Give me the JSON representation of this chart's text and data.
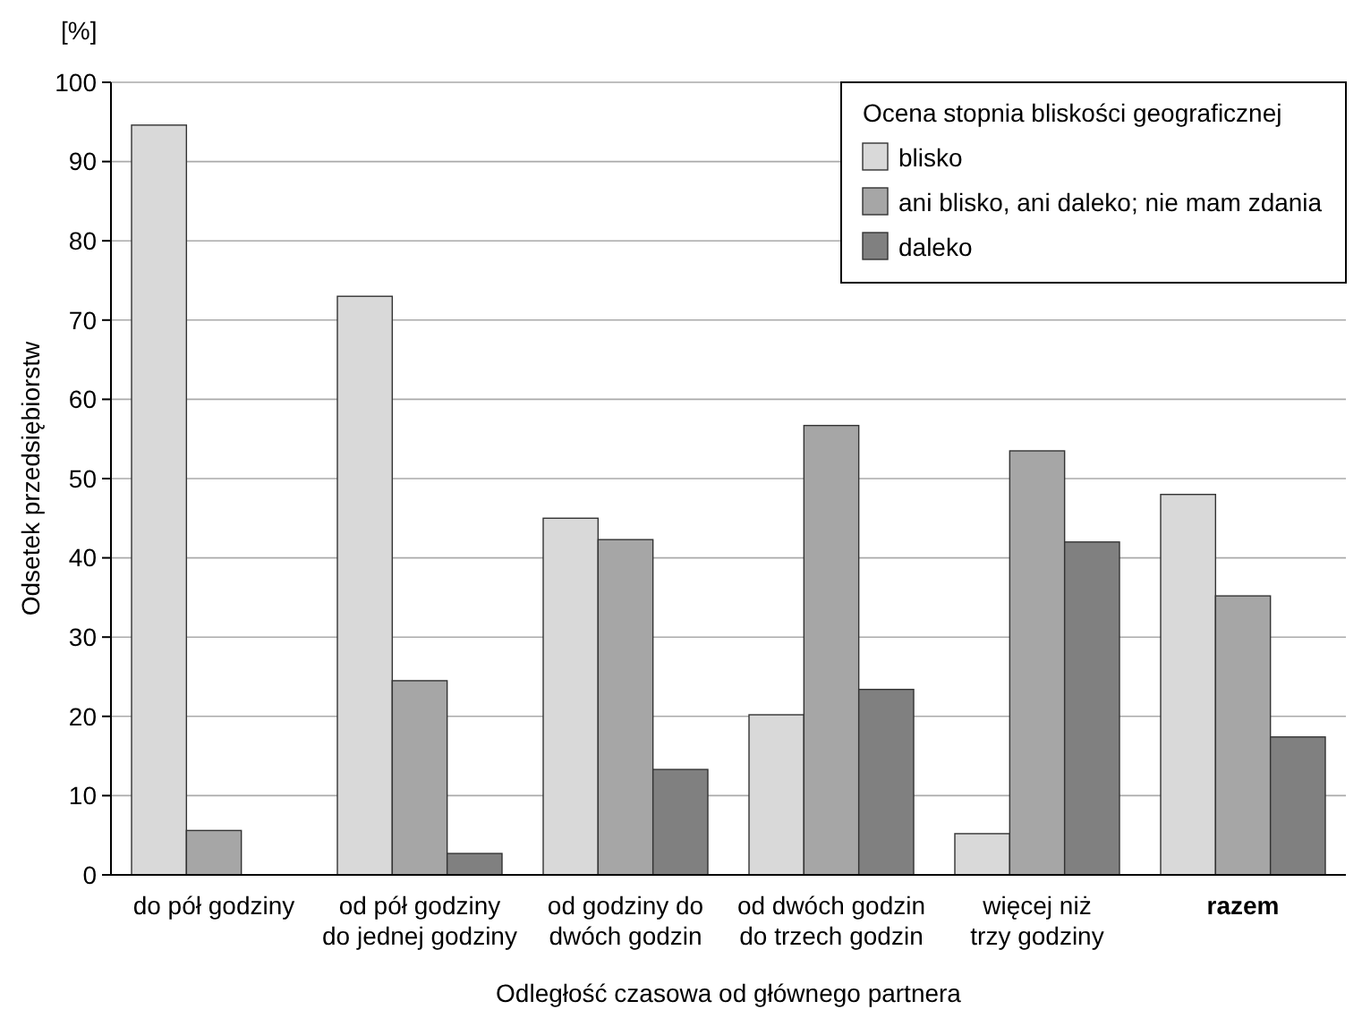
{
  "chart_data": {
    "type": "bar",
    "xlabel": "Odległość czasowa od głównego partnera",
    "ylabel": "Odsetek przedsiębiorstw",
    "legend_title": "Ocena stopnia bliskości geograficznej",
    "annotations": [
      "[%]"
    ],
    "categories": [
      "do pół godziny",
      "od pół godziny\ndo jednej godziny",
      "od godziny do\ndwóch godzin",
      "od dwóch godzin\ndo trzech godzin",
      "więcej niż\ntrzy godziny",
      "razem"
    ],
    "series": [
      {
        "name": "blisko",
        "color": "#d9d9d9",
        "values": [
          94.6,
          73,
          45,
          20.2,
          5.2,
          48
        ]
      },
      {
        "name": "ani blisko, ani daleko; nie mam zdania",
        "color": "#a6a6a6",
        "values": [
          5.6,
          24.5,
          42.3,
          56.7,
          53.5,
          35.2
        ]
      },
      {
        "name": "daleko",
        "color": "#808080",
        "values": [
          null,
          2.7,
          13.3,
          23.4,
          42,
          17.4
        ]
      }
    ],
    "ylim": [
      0,
      100
    ],
    "yticks": [
      0,
      10,
      20,
      30,
      40,
      50,
      60,
      70,
      80,
      90,
      100
    ],
    "grid": "y",
    "legend": "top right"
  }
}
